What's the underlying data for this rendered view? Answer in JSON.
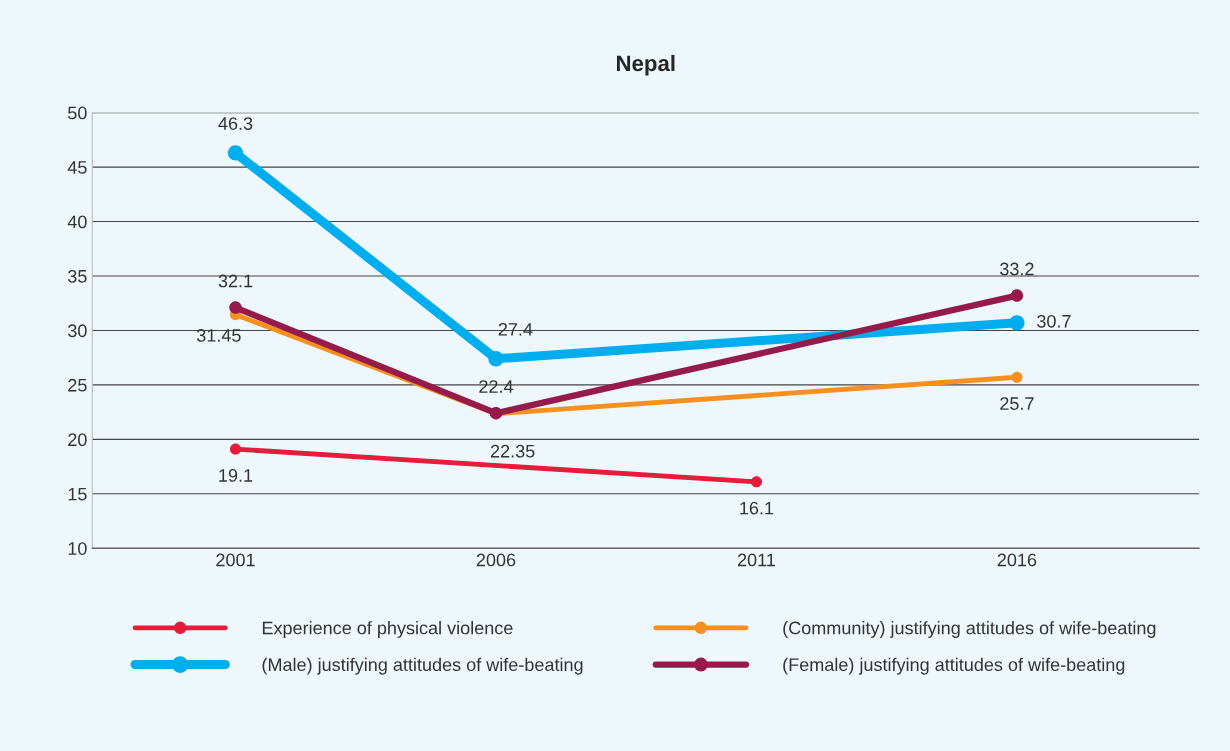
{
  "chart_data": {
    "type": "line",
    "title": "Nepal",
    "categories": [
      "2001",
      "2006",
      "2011",
      "2016"
    ],
    "series": [
      {
        "name": "Experience of physical violence",
        "color": "#e31d3a",
        "values": [
          19.1,
          null,
          16.1,
          null
        ]
      },
      {
        "name": "(Community) justifying attitudes of wife-beating",
        "color": "#f7901e",
        "values": [
          31.45,
          22.35,
          null,
          25.7
        ]
      },
      {
        "name": "(Male) justifying attitudes of wife-beating",
        "color": "#00aeef",
        "values": [
          46.3,
          27.4,
          null,
          30.7
        ]
      },
      {
        "name": "(Female) justifying attitudes of wife-beating",
        "color": "#961b4b",
        "values": [
          32.1,
          22.4,
          null,
          33.2
        ]
      }
    ],
    "ylim": [
      10,
      50
    ],
    "yticks": [
      10,
      15,
      20,
      25,
      30,
      35,
      40,
      45,
      50
    ],
    "grid": "y",
    "legend": "bottom",
    "marker": "circle",
    "line_style": "solid",
    "data_labels": true
  }
}
